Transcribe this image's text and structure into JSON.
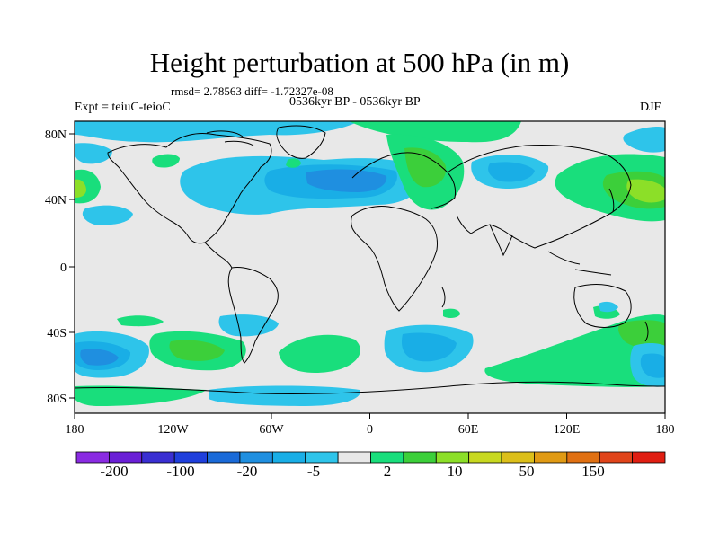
{
  "header": {
    "title": "Height perturbation at 500 hPa (in m)",
    "stats": "rmsd= 2.78563 diff= -1.72327e-08",
    "experiment": "Expt = teiuC-teioC",
    "period": "0536kyr BP - 0536kyr BP",
    "season": "DJF"
  },
  "axes": {
    "lat_labels": [
      "80N",
      "40N",
      "0",
      "40S",
      "80S"
    ],
    "lon_labels": [
      "180",
      "120W",
      "60W",
      "0",
      "60E",
      "120E",
      "180"
    ]
  },
  "colorbar": {
    "colors": [
      "#8a2be2",
      "#6a1fd6",
      "#3a2fd2",
      "#1f3fdc",
      "#1a6ad8",
      "#1f8fe0",
      "#19aee6",
      "#2ec4ea",
      "#e8e8e8",
      "#19de7c",
      "#3ccf3a",
      "#8cdf28",
      "#c8d820",
      "#dcbf1a",
      "#e09a14",
      "#e07012",
      "#e0441a",
      "#e01e12"
    ],
    "labels": [
      "-200",
      "-100",
      "-20",
      "-5",
      "2",
      "10",
      "50",
      "150"
    ]
  },
  "colors": {
    "ocean_fill": "#e8e8e8",
    "light_blue": "#2ec4ea",
    "mid_blue": "#19aee6",
    "blue": "#1f8fe0",
    "green_light": "#19de7c",
    "green": "#3ccf3a",
    "yellow_green": "#8cdf28",
    "coast": "#000000"
  }
}
